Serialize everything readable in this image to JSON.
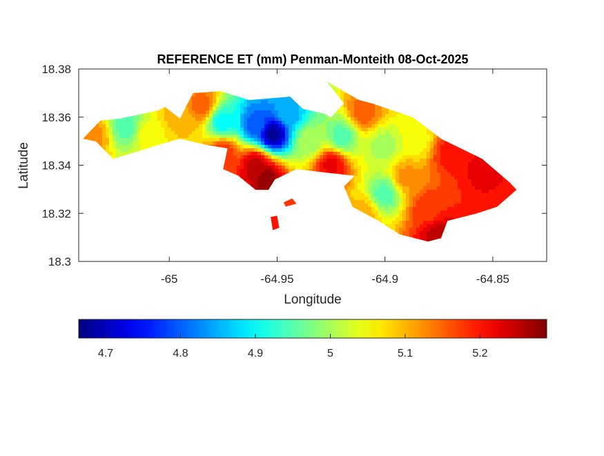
{
  "chart_data": {
    "type": "heatmap",
    "title": "REFERENCE ET (mm) Penman-Monteith 08-Oct-2025",
    "xlabel": "Longitude",
    "ylabel": "Latitude",
    "xlim": [
      -65.042,
      -64.825
    ],
    "ylim": [
      18.3,
      18.38
    ],
    "xticks": [
      -65,
      -64.95,
      -64.9,
      -64.85
    ],
    "xtick_labels": [
      "-65",
      "-64.95",
      "-64.9",
      "-64.85"
    ],
    "yticks": [
      18.3,
      18.32,
      18.34,
      18.36,
      18.38
    ],
    "ytick_labels": [
      "18.3",
      "18.32",
      "18.34",
      "18.36",
      "18.38"
    ],
    "colormap": "jet",
    "clim": [
      4.664,
      5.289
    ],
    "colorbar": {
      "placement": "bottom",
      "ticks": [
        4.7,
        4.8,
        4.9,
        5.0,
        5.1,
        5.2
      ],
      "tick_labels": [
        "4.7",
        "4.8",
        "4.9",
        "5",
        "5.1",
        "5.2"
      ]
    },
    "outline": [
      [
        -65.04,
        18.351
      ],
      [
        -65.032,
        18.3585
      ],
      [
        -65.0225,
        18.3594
      ],
      [
        -65.005,
        18.3628
      ],
      [
        -65.002,
        18.3642
      ],
      [
        -64.995,
        18.3594
      ],
      [
        -64.989,
        18.37
      ],
      [
        -64.976,
        18.3708
      ],
      [
        -64.963,
        18.3671
      ],
      [
        -64.944,
        18.3685
      ],
      [
        -64.938,
        18.3634
      ],
      [
        -64.928,
        18.3614
      ],
      [
        -64.925,
        18.3599
      ],
      [
        -64.919,
        18.3657
      ],
      [
        -64.927,
        18.3748
      ],
      [
        -64.912,
        18.3671
      ],
      [
        -64.906,
        18.3657
      ],
      [
        -64.887,
        18.3599
      ],
      [
        -64.874,
        18.351
      ],
      [
        -64.855,
        18.3427
      ],
      [
        -64.842,
        18.3327
      ],
      [
        -64.839,
        18.3298
      ],
      [
        -64.848,
        18.3227
      ],
      [
        -64.858,
        18.3198
      ],
      [
        -64.871,
        18.3169
      ],
      [
        -64.874,
        18.3097
      ],
      [
        -64.88,
        18.3083
      ],
      [
        -64.893,
        18.3112
      ],
      [
        -64.903,
        18.3169
      ],
      [
        -64.915,
        18.3227
      ],
      [
        -64.919,
        18.3312
      ],
      [
        -64.914,
        18.3356
      ],
      [
        -64.928,
        18.337
      ],
      [
        -64.941,
        18.3384
      ],
      [
        -64.951,
        18.3341
      ],
      [
        -64.954,
        18.3298
      ],
      [
        -64.96,
        18.3298
      ],
      [
        -64.968,
        18.3356
      ],
      [
        -64.975,
        18.3384
      ],
      [
        -64.973,
        18.347
      ],
      [
        -64.983,
        18.3485
      ],
      [
        -64.995,
        18.351
      ],
      [
        -65.005,
        18.3485
      ],
      [
        -65.015,
        18.3456
      ],
      [
        -65.026,
        18.3427
      ],
      [
        -65.034,
        18.3499
      ]
    ],
    "islets": [
      [
        [
          -64.947,
          18.3245
        ],
        [
          -64.943,
          18.3262
        ],
        [
          -64.941,
          18.324
        ],
        [
          -64.946,
          18.3228
        ]
      ],
      [
        [
          -64.953,
          18.3185
        ],
        [
          -64.95,
          18.319
        ],
        [
          -64.949,
          18.314
        ],
        [
          -64.952,
          18.313
        ]
      ]
    ],
    "islet_values": [
      5.18,
      5.2
    ],
    "samples": [
      [
        -65.035,
        18.352,
        5.12
      ],
      [
        -65.02,
        18.356,
        4.95
      ],
      [
        -65.01,
        18.352,
        5.05
      ],
      [
        -64.995,
        18.36,
        5.1
      ],
      [
        -64.985,
        18.365,
        5.15
      ],
      [
        -64.975,
        18.358,
        4.9
      ],
      [
        -64.96,
        18.357,
        4.8
      ],
      [
        -64.952,
        18.353,
        4.68
      ],
      [
        -64.945,
        18.362,
        4.85
      ],
      [
        -64.96,
        18.34,
        5.25
      ],
      [
        -64.955,
        18.334,
        5.28
      ],
      [
        -64.935,
        18.35,
        5.0
      ],
      [
        -64.92,
        18.352,
        4.95
      ],
      [
        -64.91,
        18.362,
        5.15
      ],
      [
        -64.925,
        18.34,
        5.22
      ],
      [
        -64.9,
        18.348,
        5.0
      ],
      [
        -64.885,
        18.35,
        5.05
      ],
      [
        -64.87,
        18.345,
        5.2
      ],
      [
        -64.855,
        18.338,
        5.22
      ],
      [
        -64.9,
        18.328,
        4.95
      ],
      [
        -64.91,
        18.32,
        5.1
      ],
      [
        -64.88,
        18.322,
        5.18
      ],
      [
        -64.875,
        18.31,
        5.25
      ],
      [
        -64.89,
        18.335,
        5.12
      ],
      [
        -64.975,
        18.345,
        5.18
      ]
    ]
  }
}
